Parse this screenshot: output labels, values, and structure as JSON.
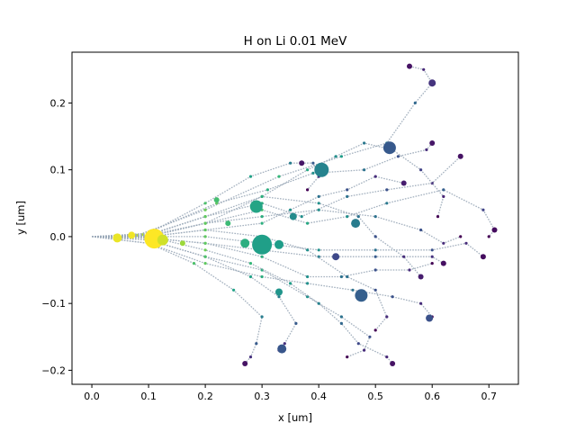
{
  "chart_data": {
    "type": "scatter",
    "title": "H on Li 0.01 MeV",
    "xlabel": "x [um]",
    "ylabel": "y [um]",
    "xlim": [
      -0.035,
      0.752
    ],
    "ylim": [
      -0.221,
      0.276
    ],
    "xticks": [
      0.0,
      0.1,
      0.2,
      0.3,
      0.4,
      0.5,
      0.6,
      0.7
    ],
    "yticks": [
      -0.2,
      -0.1,
      0.0,
      0.1,
      0.2
    ],
    "xtick_labels": [
      "0.0",
      "0.1",
      "0.2",
      "0.3",
      "0.4",
      "0.5",
      "0.6",
      "0.7"
    ],
    "ytick_labels": [
      "−0.2",
      "−0.1",
      "0.0",
      "0.1",
      "0.2"
    ],
    "grid": false,
    "colormap": "viridis",
    "colors": {
      "track_line": "#9aa8b8",
      "frame": "#000000",
      "background": "#ffffff"
    },
    "trajectories": [
      [
        [
          0,
          0
        ],
        [
          0.08,
          0.002
        ],
        [
          0.2,
          0.04
        ],
        [
          0.33,
          0.09
        ],
        [
          0.44,
          0.12
        ],
        [
          0.52,
          0.14
        ],
        [
          0.57,
          0.2
        ],
        [
          0.6,
          0.23
        ],
        [
          0.585,
          0.25
        ],
        [
          0.56,
          0.255
        ]
      ],
      [
        [
          0,
          0
        ],
        [
          0.09,
          0.003
        ],
        [
          0.22,
          0.05
        ],
        [
          0.31,
          0.07
        ],
        [
          0.39,
          0.095
        ],
        [
          0.48,
          0.1
        ],
        [
          0.54,
          0.12
        ],
        [
          0.59,
          0.13
        ],
        [
          0.6,
          0.14
        ]
      ],
      [
        [
          0,
          0
        ],
        [
          0.1,
          0.002
        ],
        [
          0.2,
          0.03
        ],
        [
          0.3,
          0.05
        ],
        [
          0.37,
          0.03
        ],
        [
          0.45,
          0.06
        ],
        [
          0.52,
          0.07
        ],
        [
          0.6,
          0.08
        ],
        [
          0.65,
          0.12
        ]
      ],
      [
        [
          0,
          0
        ],
        [
          0.1,
          0.0
        ],
        [
          0.2,
          0.02
        ],
        [
          0.3,
          0.04
        ],
        [
          0.38,
          0.02
        ],
        [
          0.45,
          0.03
        ],
        [
          0.52,
          0.05
        ],
        [
          0.62,
          0.07
        ],
        [
          0.69,
          0.04
        ],
        [
          0.71,
          0.01
        ],
        [
          0.7,
          0.0
        ]
      ],
      [
        [
          0,
          0
        ],
        [
          0.1,
          0.0
        ],
        [
          0.2,
          0.0
        ],
        [
          0.3,
          -0.01
        ],
        [
          0.4,
          -0.02
        ],
        [
          0.5,
          -0.02
        ],
        [
          0.6,
          -0.02
        ],
        [
          0.66,
          -0.01
        ],
        [
          0.69,
          -0.03
        ]
      ],
      [
        [
          0,
          0
        ],
        [
          0.1,
          -0.002
        ],
        [
          0.2,
          -0.01
        ],
        [
          0.3,
          -0.02
        ],
        [
          0.4,
          -0.03
        ],
        [
          0.5,
          -0.03
        ],
        [
          0.6,
          -0.03
        ],
        [
          0.62,
          -0.04
        ]
      ],
      [
        [
          0,
          0
        ],
        [
          0.1,
          -0.002
        ],
        [
          0.2,
          -0.01
        ],
        [
          0.3,
          -0.03
        ],
        [
          0.38,
          -0.06
        ],
        [
          0.44,
          -0.06
        ],
        [
          0.5,
          -0.05
        ],
        [
          0.56,
          -0.05
        ],
        [
          0.6,
          -0.04
        ]
      ],
      [
        [
          0,
          0
        ],
        [
          0.1,
          -0.005
        ],
        [
          0.2,
          -0.03
        ],
        [
          0.3,
          -0.05
        ],
        [
          0.38,
          -0.09
        ],
        [
          0.44,
          -0.12
        ],
        [
          0.49,
          -0.15
        ],
        [
          0.48,
          -0.17
        ],
        [
          0.45,
          -0.18
        ]
      ],
      [
        [
          0,
          0
        ],
        [
          0.1,
          -0.01
        ],
        [
          0.2,
          -0.04
        ],
        [
          0.3,
          -0.06
        ],
        [
          0.38,
          -0.07
        ],
        [
          0.46,
          -0.08
        ],
        [
          0.53,
          -0.09
        ],
        [
          0.58,
          -0.1
        ],
        [
          0.6,
          -0.12
        ]
      ],
      [
        [
          0,
          0
        ],
        [
          0.1,
          -0.01
        ],
        [
          0.18,
          -0.04
        ],
        [
          0.25,
          -0.08
        ],
        [
          0.3,
          -0.12
        ],
        [
          0.29,
          -0.16
        ],
        [
          0.28,
          -0.18
        ],
        [
          0.27,
          -0.19
        ]
      ],
      [
        [
          0,
          0
        ],
        [
          0.1,
          -0.005
        ],
        [
          0.2,
          -0.03
        ],
        [
          0.28,
          -0.06
        ],
        [
          0.33,
          -0.09
        ],
        [
          0.36,
          -0.13
        ],
        [
          0.34,
          -0.16
        ],
        [
          0.33,
          -0.17
        ]
      ],
      [
        [
          0,
          0
        ],
        [
          0.1,
          0.0
        ],
        [
          0.2,
          -0.02
        ],
        [
          0.28,
          -0.04
        ],
        [
          0.35,
          -0.07
        ],
        [
          0.4,
          -0.1
        ],
        [
          0.44,
          -0.13
        ],
        [
          0.47,
          -0.16
        ],
        [
          0.52,
          -0.18
        ],
        [
          0.53,
          -0.19
        ]
      ],
      [
        [
          0,
          0
        ],
        [
          0.1,
          0.002
        ],
        [
          0.2,
          0.02
        ],
        [
          0.3,
          0.06
        ],
        [
          0.38,
          0.1
        ],
        [
          0.43,
          0.12
        ],
        [
          0.48,
          0.14
        ],
        [
          0.53,
          0.13
        ],
        [
          0.58,
          0.1
        ],
        [
          0.62,
          0.06
        ],
        [
          0.61,
          0.03
        ]
      ],
      [
        [
          0,
          0
        ],
        [
          0.1,
          0.0
        ],
        [
          0.2,
          0.02
        ],
        [
          0.3,
          0.03
        ],
        [
          0.4,
          0.04
        ],
        [
          0.5,
          0.03
        ],
        [
          0.58,
          0.01
        ],
        [
          0.62,
          -0.01
        ],
        [
          0.65,
          0.0
        ]
      ],
      [
        [
          0,
          0
        ],
        [
          0.1,
          0.0
        ],
        [
          0.2,
          0.01
        ],
        [
          0.3,
          0.02
        ],
        [
          0.35,
          0.04
        ],
        [
          0.4,
          0.06
        ],
        [
          0.45,
          0.07
        ],
        [
          0.5,
          0.09
        ],
        [
          0.55,
          0.08
        ]
      ],
      [
        [
          0,
          0
        ],
        [
          0.1,
          0.0
        ],
        [
          0.2,
          0.01
        ],
        [
          0.3,
          0.0
        ],
        [
          0.38,
          -0.02
        ],
        [
          0.45,
          -0.06
        ],
        [
          0.5,
          -0.08
        ],
        [
          0.52,
          -0.12
        ],
        [
          0.5,
          -0.14
        ]
      ],
      [
        [
          0,
          0
        ],
        [
          0.1,
          0.005
        ],
        [
          0.2,
          0.05
        ],
        [
          0.28,
          0.09
        ],
        [
          0.35,
          0.11
        ],
        [
          0.39,
          0.11
        ],
        [
          0.4,
          0.09
        ],
        [
          0.38,
          0.07
        ]
      ],
      [
        [
          0,
          0
        ],
        [
          0.1,
          0.003
        ],
        [
          0.2,
          0.03
        ],
        [
          0.3,
          0.06
        ],
        [
          0.4,
          0.05
        ],
        [
          0.47,
          0.03
        ],
        [
          0.5,
          -0.0
        ],
        [
          0.55,
          -0.03
        ],
        [
          0.58,
          -0.06
        ]
      ]
    ],
    "markers": [
      {
        "x": 0.11,
        "y": -0.003,
        "size": 11,
        "value": 1.0
      },
      {
        "x": 0.07,
        "y": 0.002,
        "size": 4,
        "value": 0.98
      },
      {
        "x": 0.045,
        "y": -0.002,
        "size": 5,
        "value": 0.97
      },
      {
        "x": 0.125,
        "y": -0.005,
        "size": 6,
        "value": 0.93
      },
      {
        "x": 0.16,
        "y": -0.01,
        "size": 3,
        "value": 0.85
      },
      {
        "x": 0.22,
        "y": 0.055,
        "size": 3,
        "value": 0.7
      },
      {
        "x": 0.24,
        "y": 0.02,
        "size": 3,
        "value": 0.68
      },
      {
        "x": 0.27,
        "y": -0.01,
        "size": 5,
        "value": 0.62
      },
      {
        "x": 0.29,
        "y": 0.045,
        "size": 7,
        "value": 0.58
      },
      {
        "x": 0.3,
        "y": -0.012,
        "size": 11,
        "value": 0.56
      },
      {
        "x": 0.33,
        "y": -0.012,
        "size": 5,
        "value": 0.55
      },
      {
        "x": 0.33,
        "y": -0.083,
        "size": 4,
        "value": 0.52
      },
      {
        "x": 0.355,
        "y": 0.03,
        "size": 4,
        "value": 0.48
      },
      {
        "x": 0.405,
        "y": 0.1,
        "size": 8,
        "value": 0.45
      },
      {
        "x": 0.465,
        "y": 0.02,
        "size": 5,
        "value": 0.42
      },
      {
        "x": 0.525,
        "y": 0.133,
        "size": 7,
        "value": 0.28
      },
      {
        "x": 0.475,
        "y": -0.088,
        "size": 7,
        "value": 0.3
      },
      {
        "x": 0.595,
        "y": -0.122,
        "size": 4,
        "value": 0.25
      },
      {
        "x": 0.335,
        "y": -0.168,
        "size": 5,
        "value": 0.27
      },
      {
        "x": 0.43,
        "y": -0.03,
        "size": 4,
        "value": 0.22
      },
      {
        "x": 0.6,
        "y": 0.23,
        "size": 4,
        "value": 0.15
      },
      {
        "x": 0.56,
        "y": 0.255,
        "size": 3,
        "value": 0.05
      },
      {
        "x": 0.65,
        "y": 0.12,
        "size": 3,
        "value": 0.05
      },
      {
        "x": 0.71,
        "y": 0.01,
        "size": 3,
        "value": 0.03
      },
      {
        "x": 0.69,
        "y": -0.03,
        "size": 3,
        "value": 0.03
      },
      {
        "x": 0.62,
        "y": -0.04,
        "size": 3,
        "value": 0.04
      },
      {
        "x": 0.6,
        "y": 0.14,
        "size": 3,
        "value": 0.06
      },
      {
        "x": 0.37,
        "y": 0.11,
        "size": 3,
        "value": 0.06
      },
      {
        "x": 0.27,
        "y": -0.19,
        "size": 3,
        "value": 0.05
      },
      {
        "x": 0.53,
        "y": -0.19,
        "size": 3,
        "value": 0.05
      },
      {
        "x": 0.55,
        "y": 0.08,
        "size": 3,
        "value": 0.08
      },
      {
        "x": 0.58,
        "y": -0.06,
        "size": 3,
        "value": 0.08
      }
    ]
  }
}
